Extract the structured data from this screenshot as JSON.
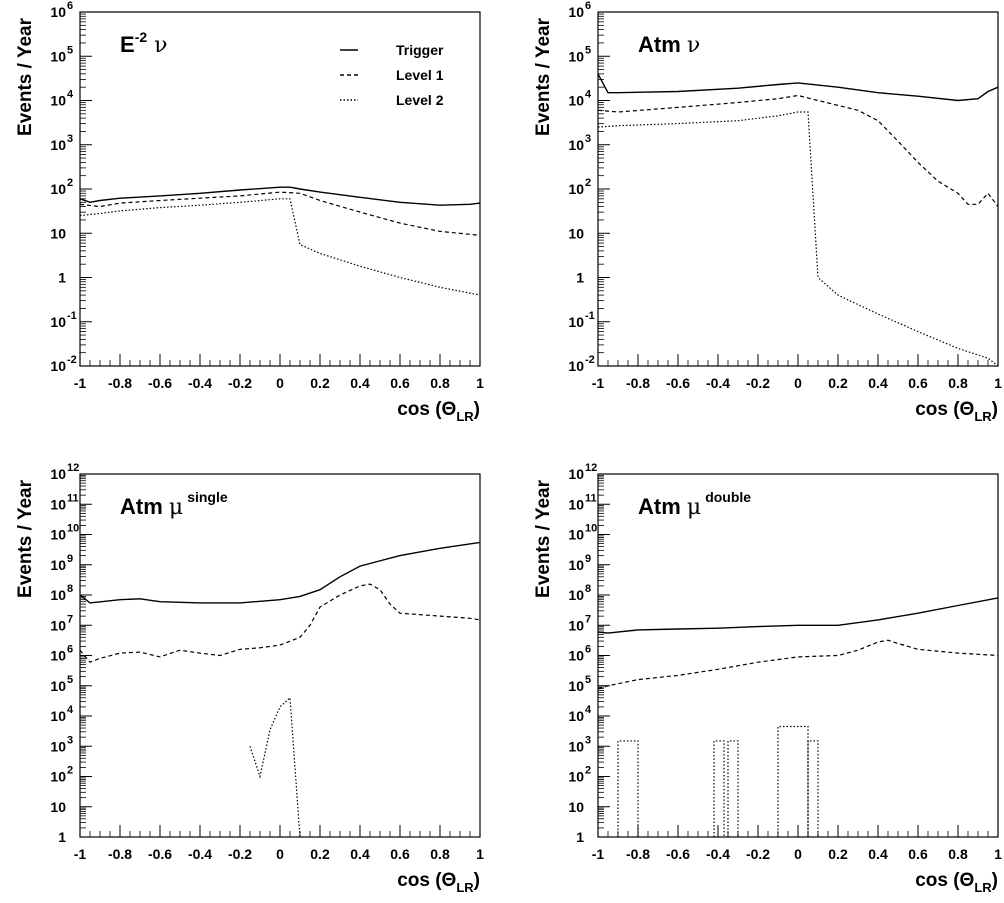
{
  "chart_data": [
    {
      "type": "line",
      "title": {
        "base": "E",
        "sup": "-2",
        "greek": "ν"
      },
      "xlabel": {
        "main": "cos (Θ",
        "sub": "LR",
        "close": ")"
      },
      "ylabel": "Events / Year",
      "xlim": [
        -1,
        1
      ],
      "ylim": [
        0.01,
        1000000
      ],
      "yscale": "log",
      "xticks": [
        -1,
        -0.8,
        -0.6,
        -0.4,
        -0.2,
        0,
        0.2,
        0.4,
        0.6,
        0.8,
        1
      ],
      "xtick_labels": [
        "-1",
        "-0.8",
        "-0.6",
        "-0.4",
        "-0.2",
        "0",
        "0.2",
        "0.4",
        "0.6",
        "0.8",
        "1"
      ],
      "yticks": [
        {
          "value": 0.01,
          "base": "10",
          "exp": "-2"
        },
        {
          "value": 0.1,
          "base": "10",
          "exp": "-1"
        },
        {
          "value": 1,
          "base": "1",
          "exp": ""
        },
        {
          "value": 10,
          "base": "10",
          "exp": ""
        },
        {
          "value": 100,
          "base": "10",
          "exp": "2"
        },
        {
          "value": 1000,
          "base": "10",
          "exp": "3"
        },
        {
          "value": 10000,
          "base": "10",
          "exp": "4"
        },
        {
          "value": 100000,
          "base": "10",
          "exp": "5"
        },
        {
          "value": 1000000,
          "base": "10",
          "exp": "6"
        }
      ],
      "legend": {
        "position": "top-right",
        "entries": [
          {
            "name": "Trigger",
            "style": "solid"
          },
          {
            "name": "Level 1",
            "style": "dashed"
          },
          {
            "name": "Level 2",
            "style": "dotted"
          }
        ]
      },
      "series": [
        {
          "name": "Trigger",
          "style": "solid",
          "x": [
            -1,
            -0.95,
            -0.9,
            -0.8,
            -0.6,
            -0.4,
            -0.2,
            0,
            0.05,
            0.1,
            0.2,
            0.4,
            0.6,
            0.8,
            0.95,
            1
          ],
          "y": [
            60,
            50,
            55,
            62,
            70,
            80,
            95,
            110,
            110,
            100,
            85,
            65,
            50,
            43,
            45,
            48
          ]
        },
        {
          "name": "Level 1",
          "style": "dashed",
          "x": [
            -1,
            -0.9,
            -0.8,
            -0.6,
            -0.4,
            -0.2,
            0,
            0.1,
            0.2,
            0.4,
            0.6,
            0.8,
            1
          ],
          "y": [
            45,
            40,
            48,
            55,
            62,
            70,
            85,
            80,
            55,
            30,
            17,
            11,
            9
          ]
        },
        {
          "name": "Level 2",
          "style": "dotted",
          "x": [
            -1,
            -0.9,
            -0.8,
            -0.6,
            -0.4,
            -0.2,
            0,
            0.05,
            0.1,
            0.2,
            0.4,
            0.6,
            0.8,
            1
          ],
          "y": [
            25,
            28,
            32,
            38,
            43,
            50,
            60,
            60,
            5.5,
            3.5,
            1.8,
            1.0,
            0.6,
            0.4
          ]
        }
      ]
    },
    {
      "type": "line",
      "title": {
        "base": "Atm",
        "sup": "",
        "greek": "ν"
      },
      "xlabel": {
        "main": "cos (Θ",
        "sub": "LR",
        "close": ")"
      },
      "ylabel": "Events / Year",
      "xlim": [
        -1,
        1
      ],
      "ylim": [
        0.01,
        1000000
      ],
      "yscale": "log",
      "xticks": [
        -1,
        -0.8,
        -0.6,
        -0.4,
        -0.2,
        0,
        0.2,
        0.4,
        0.6,
        0.8,
        1
      ],
      "xtick_labels": [
        "-1",
        "-0.8",
        "-0.6",
        "-0.4",
        "-0.2",
        "0",
        "0.2",
        "0.4",
        "0.6",
        "0.8",
        "1"
      ],
      "yticks": [
        {
          "value": 0.01,
          "base": "10",
          "exp": "-2"
        },
        {
          "value": 0.1,
          "base": "10",
          "exp": "-1"
        },
        {
          "value": 1,
          "base": "1",
          "exp": ""
        },
        {
          "value": 10,
          "base": "10",
          "exp": ""
        },
        {
          "value": 100,
          "base": "10",
          "exp": "2"
        },
        {
          "value": 1000,
          "base": "10",
          "exp": "3"
        },
        {
          "value": 10000,
          "base": "10",
          "exp": "4"
        },
        {
          "value": 100000,
          "base": "10",
          "exp": "5"
        },
        {
          "value": 1000000,
          "base": "10",
          "exp": "6"
        }
      ],
      "series": [
        {
          "name": "Trigger",
          "style": "solid",
          "x": [
            -1,
            -0.95,
            -0.9,
            -0.6,
            -0.3,
            -0.1,
            0,
            0.2,
            0.4,
            0.6,
            0.8,
            0.9,
            0.95,
            1
          ],
          "y": [
            40000,
            15000,
            15000,
            16000,
            19000,
            23000,
            25000,
            20000,
            15000,
            12500,
            10000,
            11000,
            16000,
            20000
          ]
        },
        {
          "name": "Level 1",
          "style": "dashed",
          "x": [
            -1,
            -0.9,
            -0.6,
            -0.3,
            -0.1,
            0,
            0.1,
            0.3,
            0.4,
            0.5,
            0.6,
            0.7,
            0.8,
            0.85,
            0.9,
            0.95,
            1
          ],
          "y": [
            6000,
            5500,
            7000,
            9000,
            11000,
            13000,
            10000,
            6000,
            3500,
            1200,
            400,
            150,
            80,
            45,
            45,
            80,
            40
          ]
        },
        {
          "name": "Level 2",
          "style": "dotted",
          "x": [
            -1,
            -0.9,
            -0.6,
            -0.3,
            -0.1,
            0,
            0.05,
            0.1,
            0.2,
            0.4,
            0.6,
            0.8,
            0.95,
            1
          ],
          "y": [
            2500,
            2700,
            3000,
            3500,
            4500,
            5500,
            5500,
            1.0,
            0.4,
            0.15,
            0.06,
            0.025,
            0.015,
            0.01
          ]
        }
      ]
    },
    {
      "type": "line",
      "title": {
        "base": "Atm",
        "sup": "single",
        "greek": "μ"
      },
      "xlabel": {
        "main": "cos (Θ",
        "sub": "LR",
        "close": ")"
      },
      "ylabel": "Events / Year",
      "xlim": [
        -1,
        1
      ],
      "ylim": [
        1,
        1000000000000
      ],
      "yscale": "log",
      "xticks": [
        -1,
        -0.8,
        -0.6,
        -0.4,
        -0.2,
        0,
        0.2,
        0.4,
        0.6,
        0.8,
        1
      ],
      "xtick_labels": [
        "-1",
        "-0.8",
        "-0.6",
        "-0.4",
        "-0.2",
        "0",
        "0.2",
        "0.4",
        "0.6",
        "0.8",
        "1"
      ],
      "yticks": [
        {
          "value": 1,
          "base": "1",
          "exp": ""
        },
        {
          "value": 10,
          "base": "10",
          "exp": ""
        },
        {
          "value": 100,
          "base": "10",
          "exp": "2"
        },
        {
          "value": 1000,
          "base": "10",
          "exp": "3"
        },
        {
          "value": 10000,
          "base": "10",
          "exp": "4"
        },
        {
          "value": 100000,
          "base": "10",
          "exp": "5"
        },
        {
          "value": 1000000,
          "base": "10",
          "exp": "6"
        },
        {
          "value": 10000000,
          "base": "10",
          "exp": "7"
        },
        {
          "value": 100000000,
          "base": "10",
          "exp": "8"
        },
        {
          "value": 1000000000,
          "base": "10",
          "exp": "9"
        },
        {
          "value": 10000000000,
          "base": "10",
          "exp": "10"
        },
        {
          "value": 100000000000,
          "base": "10",
          "exp": "11"
        },
        {
          "value": 1000000000000,
          "base": "10",
          "exp": "12"
        }
      ],
      "series": [
        {
          "name": "Trigger",
          "style": "solid",
          "x": [
            -1,
            -0.95,
            -0.8,
            -0.7,
            -0.6,
            -0.4,
            -0.2,
            0,
            0.1,
            0.2,
            0.3,
            0.4,
            0.6,
            0.8,
            1
          ],
          "y": [
            100000000,
            55000000,
            70000000,
            75000000,
            60000000,
            55000000,
            55000000,
            70000000,
            90000000,
            150000000,
            400000000,
            900000000,
            2000000000,
            3500000000,
            5500000000
          ]
        },
        {
          "name": "Level 1",
          "style": "dashed",
          "x": [
            -1,
            -0.95,
            -0.9,
            -0.8,
            -0.7,
            -0.6,
            -0.5,
            -0.4,
            -0.3,
            -0.2,
            -0.1,
            0,
            0.1,
            0.15,
            0.2,
            0.3,
            0.4,
            0.45,
            0.5,
            0.55,
            0.6,
            0.8,
            0.95,
            1
          ],
          "y": [
            1500000,
            600000,
            800000,
            1200000,
            1300000,
            900000,
            1500000,
            1200000,
            1000000,
            1600000,
            1800000,
            2200000,
            4000000,
            10000000,
            40000000,
            100000000,
            200000000,
            230000000,
            150000000,
            50000000,
            25000000,
            20000000,
            17000000,
            15000000
          ]
        },
        {
          "name": "Level 2",
          "style": "dotted",
          "x": [
            -0.15,
            -0.1,
            -0.05,
            0,
            0.05,
            0.1
          ],
          "y": [
            1000,
            100,
            3500,
            20000,
            40000,
            1
          ]
        }
      ]
    },
    {
      "type": "line",
      "title": {
        "base": "Atm",
        "sup": "double",
        "greek": "μ"
      },
      "xlabel": {
        "main": "cos (Θ",
        "sub": "LR",
        "close": ")"
      },
      "ylabel": "Events / Year",
      "xlim": [
        -1,
        1
      ],
      "ylim": [
        1,
        1000000000000
      ],
      "yscale": "log",
      "xticks": [
        -1,
        -0.8,
        -0.6,
        -0.4,
        -0.2,
        0,
        0.2,
        0.4,
        0.6,
        0.8,
        1
      ],
      "xtick_labels": [
        "-1",
        "-0.8",
        "-0.6",
        "-0.4",
        "-0.2",
        "0",
        "0.2",
        "0.4",
        "0.6",
        "0.8",
        "1"
      ],
      "yticks": [
        {
          "value": 1,
          "base": "1",
          "exp": ""
        },
        {
          "value": 10,
          "base": "10",
          "exp": ""
        },
        {
          "value": 100,
          "base": "10",
          "exp": "2"
        },
        {
          "value": 1000,
          "base": "10",
          "exp": "3"
        },
        {
          "value": 10000,
          "base": "10",
          "exp": "4"
        },
        {
          "value": 100000,
          "base": "10",
          "exp": "5"
        },
        {
          "value": 1000000,
          "base": "10",
          "exp": "6"
        },
        {
          "value": 10000000,
          "base": "10",
          "exp": "7"
        },
        {
          "value": 100000000,
          "base": "10",
          "exp": "8"
        },
        {
          "value": 1000000000,
          "base": "10",
          "exp": "9"
        },
        {
          "value": 10000000000,
          "base": "10",
          "exp": "10"
        },
        {
          "value": 100000000000,
          "base": "10",
          "exp": "11"
        },
        {
          "value": 1000000000000,
          "base": "10",
          "exp": "12"
        }
      ],
      "series": [
        {
          "name": "Trigger",
          "style": "solid",
          "x": [
            -1,
            -0.95,
            -0.8,
            -0.6,
            -0.4,
            -0.2,
            0,
            0.2,
            0.4,
            0.6,
            0.8,
            1
          ],
          "y": [
            6000000,
            5500000,
            7000000,
            7500000,
            8000000,
            9000000,
            10000000,
            10000000,
            15000000,
            25000000,
            45000000,
            80000000
          ]
        },
        {
          "name": "Level 1",
          "style": "dashed",
          "x": [
            -1,
            -0.95,
            -0.8,
            -0.6,
            -0.4,
            -0.2,
            0,
            0.2,
            0.3,
            0.4,
            0.45,
            0.5,
            0.6,
            0.8,
            1
          ],
          "y": [
            80000,
            100000,
            160000,
            220000,
            350000,
            600000,
            900000,
            1000000,
            1500000,
            2800000,
            3200000,
            2500000,
            1600000,
            1200000,
            1000000
          ]
        },
        {
          "name": "Level 2",
          "style": "dotted",
          "bins": [
            {
              "x0": -0.9,
              "x1": -0.8,
              "y": 1500
            },
            {
              "x0": -0.42,
              "x1": -0.37,
              "y": 1500
            },
            {
              "x0": -0.35,
              "x1": -0.3,
              "y": 1500
            },
            {
              "x0": -0.1,
              "x1": 0.05,
              "y": 4500
            },
            {
              "x0": 0.05,
              "x1": 0.1,
              "y": 1500
            }
          ]
        }
      ]
    }
  ]
}
